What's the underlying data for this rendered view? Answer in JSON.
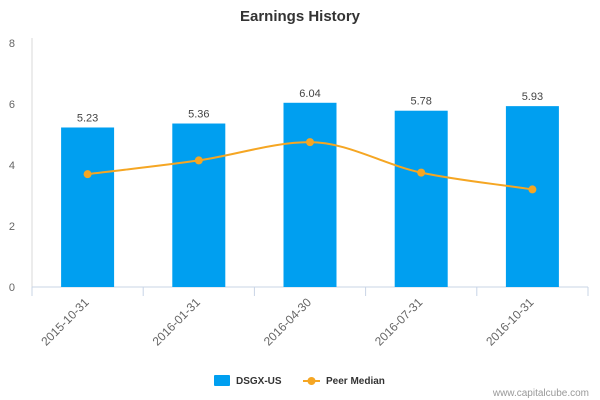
{
  "chart_data": {
    "type": "bar",
    "title": "Earnings History",
    "xlabel": "",
    "ylabel": "",
    "categories": [
      "2015-10-31",
      "2016-01-31",
      "2016-04-30",
      "2016-07-31",
      "2016-10-31"
    ],
    "ylim": [
      0,
      8
    ],
    "yticks": [
      0,
      2,
      4,
      6,
      8
    ],
    "grid": false,
    "legend": "bottom-center",
    "series": [
      {
        "name": "DSGX-US",
        "type": "bar",
        "color": "#009FF0",
        "values": [
          5.23,
          5.36,
          6.04,
          5.78,
          5.93
        ],
        "labels": [
          "5.23",
          "5.36",
          "6.04",
          "5.78",
          "5.93"
        ]
      },
      {
        "name": "Peer Median",
        "type": "line",
        "smooth": true,
        "color": "#F5A623",
        "values": [
          3.7,
          4.15,
          4.75,
          3.75,
          3.2
        ]
      }
    ]
  },
  "credit": "www.capitalcube.com"
}
